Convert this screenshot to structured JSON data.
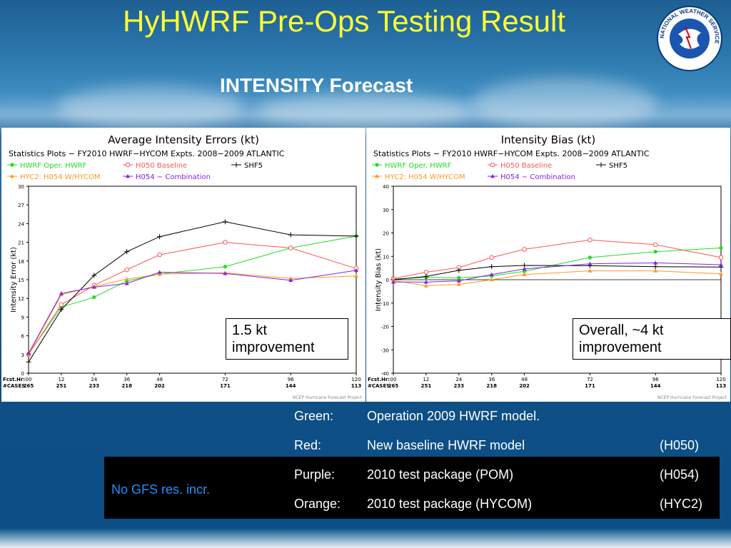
{
  "slide": {
    "title": "HyHWRF Pre-Ops Testing Result",
    "subtitle": "INTENSITY Forecast",
    "logo_text": "NATIONAL WEATHER SERVICE"
  },
  "notes": {
    "left_line1": "1.5 kt",
    "left_line2": "improvement",
    "right_line1": "Overall, ~4 kt",
    "right_line2": "improvement"
  },
  "legend_box": {
    "no_gfs": "No GFS res. incr.",
    "rows": [
      {
        "color_name": "Green:",
        "desc": "Operation 2009 HWRF model.",
        "tag": ""
      },
      {
        "color_name": "Red:",
        "desc": "New baseline HWRF model",
        "tag": "(H050)"
      },
      {
        "color_name": "Purple:",
        "desc": "2010 test package (POM)",
        "tag": "(H054)"
      },
      {
        "color_name": "Orange:",
        "desc": "2010 test package (HYCOM)",
        "tag": "(HYC2)"
      }
    ]
  },
  "colors": {
    "green": "#22dd22",
    "red": "#ff5555",
    "orange": "#ff9922",
    "purple": "#8822dd",
    "black": "#000000",
    "title": "#ffff33"
  },
  "chart_data": [
    {
      "type": "line",
      "title": "Average Intensity Errors (kt)",
      "subtitle": "Statistics Plots − FY2010 HWRF−HYCOM Expts. 2008−2009 ATLANTIC",
      "ylabel": "Intensity Error (kt)",
      "fcst_label": "Fcst.Hr:",
      "cases_label": "#CASES",
      "x": [
        0,
        12,
        24,
        36,
        48,
        72,
        96,
        120
      ],
      "x_tick_labels": [
        "00",
        "12",
        "24",
        "36",
        "48",
        "72",
        "96",
        "120"
      ],
      "cases": [
        "265",
        "251",
        "233",
        "218",
        "202",
        "171",
        "144",
        "113"
      ],
      "ylim": [
        0,
        30
      ],
      "yticks": [
        0,
        3,
        6,
        9,
        12,
        15,
        18,
        21,
        24,
        27,
        30
      ],
      "footer": "NCEP Hurricane Forecast Project",
      "series": [
        {
          "name": "HWRF Oper. HWRF",
          "color": "#22dd22",
          "marker": "dot",
          "values": [
            3.1,
            10.6,
            12.2,
            14.8,
            15.9,
            17.1,
            20.1,
            22.0
          ]
        },
        {
          "name": "H050 Baseline",
          "color": "#ff5555",
          "marker": "circle",
          "values": [
            3.0,
            11.0,
            14.1,
            16.6,
            19.0,
            21.0,
            20.1,
            16.8
          ]
        },
        {
          "name": "SHF5",
          "color": "#000000",
          "marker": "plus",
          "values": [
            1.8,
            10.2,
            15.7,
            19.5,
            21.9,
            24.3,
            22.2,
            22.0
          ]
        },
        {
          "name": "HYC2: H054 W/HYCOM",
          "color": "#ff9922",
          "marker": "tri",
          "values": [
            3.0,
            12.6,
            13.9,
            15.1,
            15.9,
            16.1,
            15.2,
            15.6
          ]
        },
        {
          "name": "H054 − Combination",
          "color": "#8822dd",
          "marker": "tri",
          "values": [
            3.2,
            12.8,
            13.8,
            14.4,
            16.2,
            16.0,
            14.9,
            16.5
          ]
        }
      ]
    },
    {
      "type": "line",
      "title": "Intensity Bias (kt)",
      "subtitle": "Statistics Plots − FY2010 HWRF−HYCOM Expts. 2008−2009 ATLANTIC",
      "ylabel": "Intensity Bias (kt)",
      "fcst_label": "Fcst.Hr:",
      "cases_label": "#CASES",
      "x": [
        0,
        12,
        24,
        36,
        48,
        72,
        96,
        120
      ],
      "x_tick_labels": [
        "00",
        "12",
        "24",
        "36",
        "48",
        "72",
        "96",
        "120"
      ],
      "cases": [
        "265",
        "251",
        "233",
        "218",
        "202",
        "171",
        "144",
        "113"
      ],
      "ylim": [
        -40,
        40
      ],
      "yticks": [
        -40,
        -30,
        -20,
        -10,
        0,
        10,
        20,
        30,
        40
      ],
      "footer": "NCEP Hurricane Forecast Project",
      "series": [
        {
          "name": "HWRF Oper. HWRF",
          "color": "#22dd22",
          "marker": "dot",
          "values": [
            0.3,
            1.0,
            0.8,
            1.6,
            3.6,
            9.5,
            12.0,
            13.6
          ]
        },
        {
          "name": "H050 Baseline",
          "color": "#ff5555",
          "marker": "circle",
          "values": [
            0.5,
            3.2,
            5.2,
            9.5,
            13.0,
            17.0,
            15.0,
            9.5
          ]
        },
        {
          "name": "SHF5",
          "color": "#000000",
          "marker": "plus",
          "values": [
            0.0,
            1.4,
            4.0,
            5.6,
            6.1,
            6.0,
            5.6,
            5.4
          ]
        },
        {
          "name": "HYC2: H054 W/HYCOM",
          "color": "#ff9922",
          "marker": "tri",
          "values": [
            -0.3,
            -2.6,
            -2.0,
            0.0,
            2.2,
            3.8,
            3.8,
            2.5
          ]
        },
        {
          "name": "H054 − Combination",
          "color": "#8822dd",
          "marker": "tri",
          "values": [
            -1.0,
            -1.0,
            -0.5,
            2.2,
            4.6,
            6.8,
            7.2,
            6.4
          ]
        }
      ]
    }
  ]
}
